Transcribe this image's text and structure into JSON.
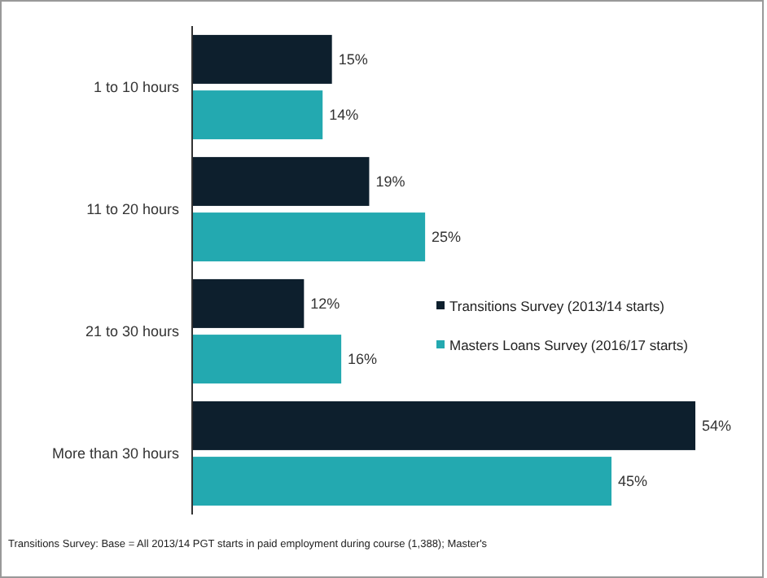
{
  "chart_data": {
    "type": "bar",
    "orientation": "horizontal",
    "categories": [
      "1 to 10 hours",
      "11 to 20 hours",
      "21 to 30 hours",
      "More than 30 hours"
    ],
    "series": [
      {
        "name": "Transitions Survey (2013/14 starts)",
        "color": "#0d1f2d",
        "values": [
          15,
          19,
          12,
          54
        ],
        "value_labels": [
          "15%",
          "19%",
          "12%",
          "54%"
        ]
      },
      {
        "name": "Masters Loans Survey (2016/17 starts)",
        "color": "#23a9b0",
        "values": [
          14,
          25,
          16,
          45
        ],
        "value_labels": [
          "14%",
          "25%",
          "16%",
          "45%"
        ]
      }
    ],
    "legend": "right",
    "annotations": [
      "Transitions Survey: Base = All 2013/14 PGT starts in paid employment during course (1,388); Master's"
    ]
  }
}
